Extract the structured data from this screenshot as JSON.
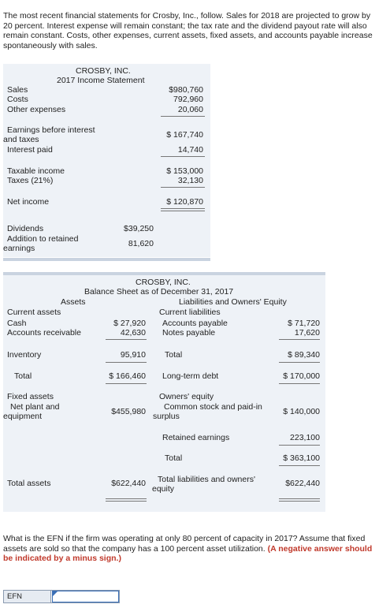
{
  "intro": "The most recent financial statements for Crosby, Inc., follow. Sales for 2018 are projected to grow by 20 percent. Interest expense will remain constant; the tax rate and the dividend payout rate will also remain constant. Costs, other expenses, current assets, fixed assets, and accounts payable increase spontaneously with sales.",
  "income": {
    "company": "CROSBY, INC.",
    "title": "2017 Income Statement",
    "sales_label": "Sales",
    "sales": "$980,760",
    "costs_label": "Costs",
    "costs": "792,960",
    "other_label": "Other expenses",
    "other": "20,060",
    "ebit_label_1": "Earnings before interest",
    "ebit_label_2": "and taxes",
    "ebit": "$ 167,740",
    "interest_label": "Interest paid",
    "interest": "14,740",
    "taxable_label": "Taxable income",
    "taxable": "$ 153,000",
    "taxes_label": "Taxes (21%)",
    "taxes": "32,130",
    "net_label": "Net income",
    "net": "$ 120,870",
    "div_label": "Dividends",
    "div": "$39,250",
    "add_label_1": "Addition to retained",
    "add_label_2": "earnings",
    "add": "81,620"
  },
  "balance": {
    "company": "CROSBY, INC.",
    "title": "Balance Sheet as of December 31, 2017",
    "assets_header": "Assets",
    "liab_header": "Liabilities and Owners' Equity",
    "current_assets": "Current assets",
    "current_liabilities": "Current liabilities",
    "cash_label": "Cash",
    "cash": "$ 27,920",
    "ar_label": "Accounts receivable",
    "ar": "42,630",
    "inv_label": "Inventory",
    "inv": "95,910",
    "ca_total_label": "Total",
    "ca_total": "$ 166,460",
    "ap_label": "Accounts payable",
    "ap": "$ 71,720",
    "np_label": "Notes payable",
    "np": "17,620",
    "cl_total_label": "Total",
    "cl_total": "$ 89,340",
    "ltd_label": "Long-term debt",
    "ltd": "$ 170,000",
    "fixed_assets": "Fixed assets",
    "npe_label_1": "Net plant and",
    "npe_label_2": "equipment",
    "npe": "$455,980",
    "oe_label": "Owners' equity",
    "cs_label_1": "Common stock and paid-in",
    "cs_label_2": "surplus",
    "cs": "$ 140,000",
    "re_label": "Retained earnings",
    "re": "223,100",
    "oe_total_label": "Total",
    "oe_total": "$ 363,100",
    "ta_label": "Total assets",
    "ta": "$622,440",
    "tle_label_1": "Total liabilities and owners'",
    "tle_label_2": "equity",
    "tle": "$622,440"
  },
  "question": {
    "text": "What is the EFN if the firm was operating at only 80 percent of capacity in 2017? Assume that fixed assets are sold so that the company has a 100 percent asset utilization.",
    "note": "(A negative answer should be indicated by a minus sign.)"
  },
  "answer": {
    "label": "EFN",
    "value": ""
  }
}
